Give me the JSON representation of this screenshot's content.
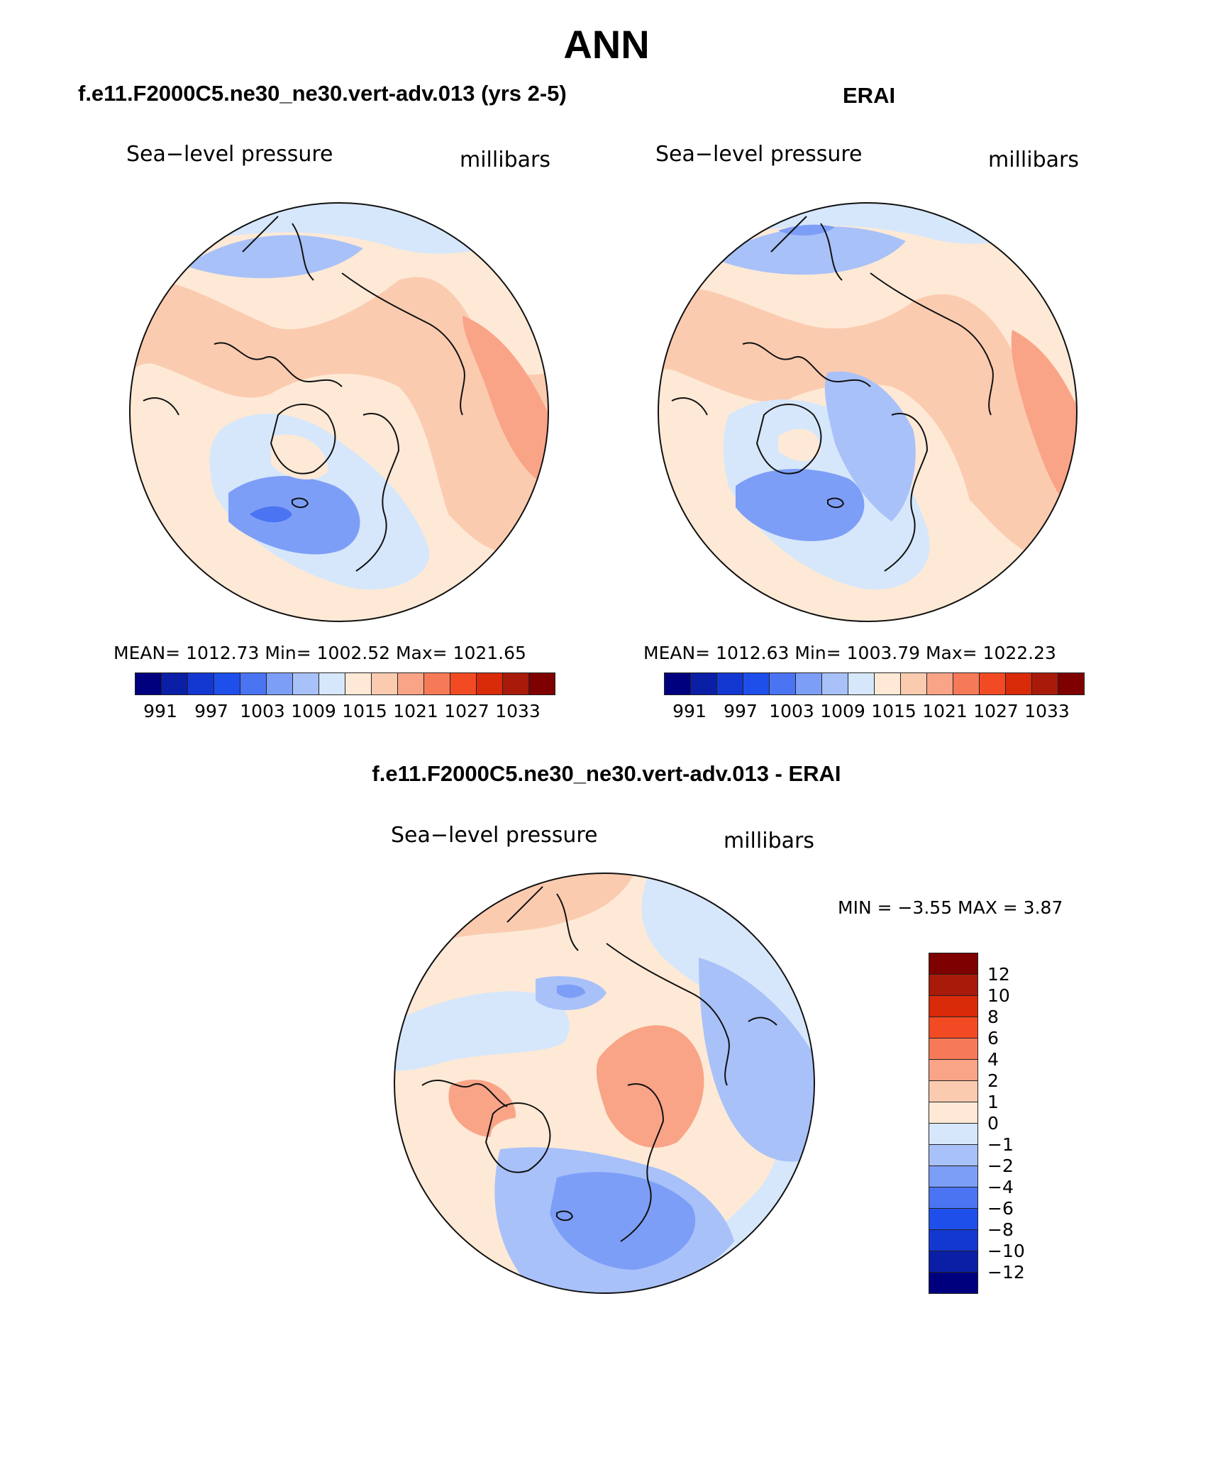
{
  "title": "ANN",
  "panels": {
    "model": {
      "title": "f.e11.F2000C5.ne30_ne30.vert-adv.013 (yrs 2-5)",
      "left_label": "Sea−level pressure",
      "right_label": "millibars",
      "stats": "MEAN= 1012.73   Min= 1002.52   Max= 1021.65"
    },
    "obs": {
      "title": "ERAI",
      "left_label": "Sea−level pressure",
      "right_label": "millibars",
      "stats": "MEAN= 1012.63   Min= 1003.79   Max= 1022.23"
    },
    "diff": {
      "title": "f.e11.F2000C5.ne30_ne30.vert-adv.013 - ERAI",
      "left_label": "Sea−level pressure",
      "right_label": "millibars",
      "stats": "MIN =   −3.55  MAX =     3.87"
    }
  },
  "colorbar_abs": {
    "colors": [
      "#00007f",
      "#0a1fa6",
      "#1337d1",
      "#1f4fea",
      "#4a74f2",
      "#7d9ef7",
      "#a8c1f9",
      "#d6e7fb",
      "#fde9d6",
      "#fbcbb0",
      "#f9a487",
      "#f77a58",
      "#f24b24",
      "#d92a0a",
      "#a81b0a",
      "#7f0000"
    ],
    "ticks": [
      "991",
      "997",
      "1003",
      "1009",
      "1015",
      "1021",
      "1027",
      "1033"
    ]
  },
  "colorbar_diff": {
    "colors": [
      "#7f0000",
      "#a81b0a",
      "#d92a0a",
      "#f24b24",
      "#f77a58",
      "#f9a487",
      "#fbcbb0",
      "#fde9d6",
      "#d6e7fb",
      "#a8c1f9",
      "#7d9ef7",
      "#4a74f2",
      "#1f4fea",
      "#1337d1",
      "#0a1fa6",
      "#00007f"
    ],
    "ticks": [
      "12",
      "10",
      "8",
      "6",
      "4",
      "2",
      "1",
      "0",
      "−1",
      "−2",
      "−4",
      "−6",
      "−8",
      "−10",
      "−12"
    ]
  },
  "icons": [
    "polar-map-model",
    "polar-map-obs",
    "polar-map-diff"
  ]
}
